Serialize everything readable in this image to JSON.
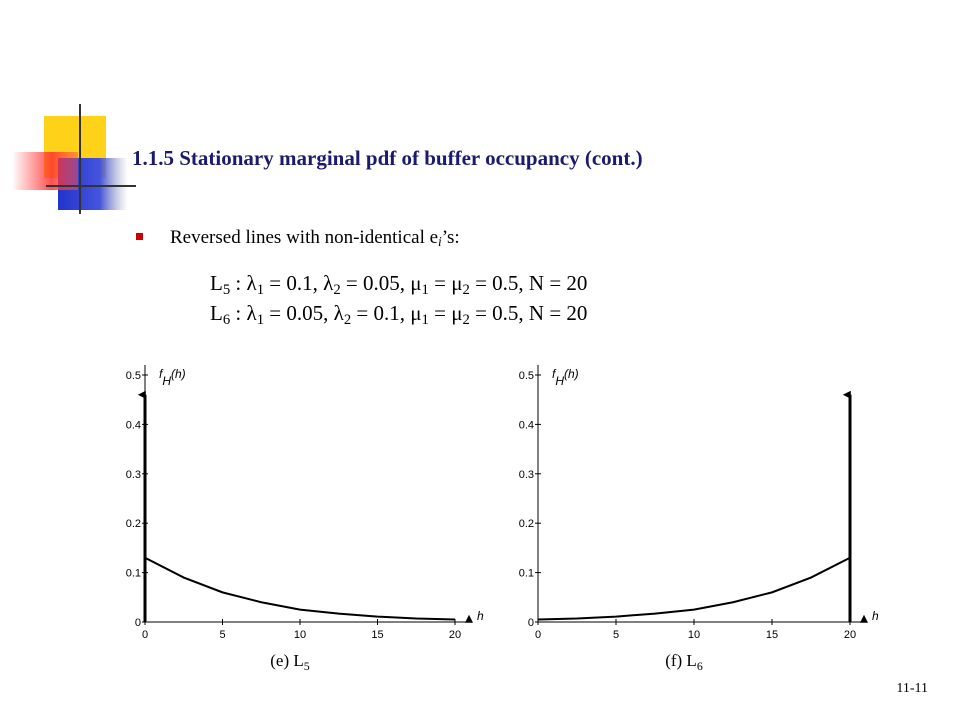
{
  "title": "1.1.5 Stationary marginal pdf of buffer occupancy (cont.)",
  "bullet": [
    "Reversed lines with non-identical e",
    "i",
    "’s:"
  ],
  "equations": [
    [
      "L",
      "5",
      " :   λ",
      "1",
      " = 0.1, λ",
      "2",
      " = 0.05,    μ",
      "1",
      " = μ",
      "2",
      " = 0.5,    N = 20"
    ],
    [
      "L",
      "6",
      " :   λ",
      "1",
      " = 0.05, λ",
      "2",
      " = 0.1,    μ",
      "1",
      " = μ",
      "2",
      " = 0.5,    N = 20"
    ]
  ],
  "page_number": "11-11",
  "chart_data": [
    {
      "type": "line",
      "ylabel": "f",
      "ylabel_sub": "H",
      "ylabel_suffix": "(h)",
      "xlabel": "h",
      "caption": "(e) L",
      "caption_sub": "5",
      "x": [
        0,
        2.5,
        5,
        7.5,
        10,
        12.5,
        15,
        17.5,
        20
      ],
      "values": [
        0.13,
        0.09,
        0.06,
        0.04,
        0.025,
        0.017,
        0.011,
        0.007,
        0.005
      ],
      "impulse_x": 0,
      "impulse_value": 0.46,
      "color": "#000000",
      "xlim": [
        0,
        20
      ],
      "ylim": [
        0,
        0.5
      ],
      "xticks": [
        0,
        5,
        10,
        15,
        20
      ],
      "yticks": [
        0,
        0.1,
        0.2,
        0.3,
        0.4,
        0.5
      ]
    },
    {
      "type": "line",
      "ylabel": "f",
      "ylabel_sub": "H",
      "ylabel_suffix": "(h)",
      "xlabel": "h",
      "caption": "(f) L",
      "caption_sub": "6",
      "x": [
        0,
        2.5,
        5,
        7.5,
        10,
        12.5,
        15,
        17.5,
        20
      ],
      "values": [
        0.005,
        0.007,
        0.011,
        0.017,
        0.025,
        0.04,
        0.06,
        0.09,
        0.13
      ],
      "impulse_x": 20,
      "impulse_value": 0.46,
      "color": "#000000",
      "xlim": [
        0,
        20
      ],
      "ylim": [
        0,
        0.5
      ],
      "xticks": [
        0,
        5,
        10,
        15,
        20
      ],
      "yticks": [
        0,
        0.1,
        0.2,
        0.3,
        0.4,
        0.5
      ]
    }
  ]
}
